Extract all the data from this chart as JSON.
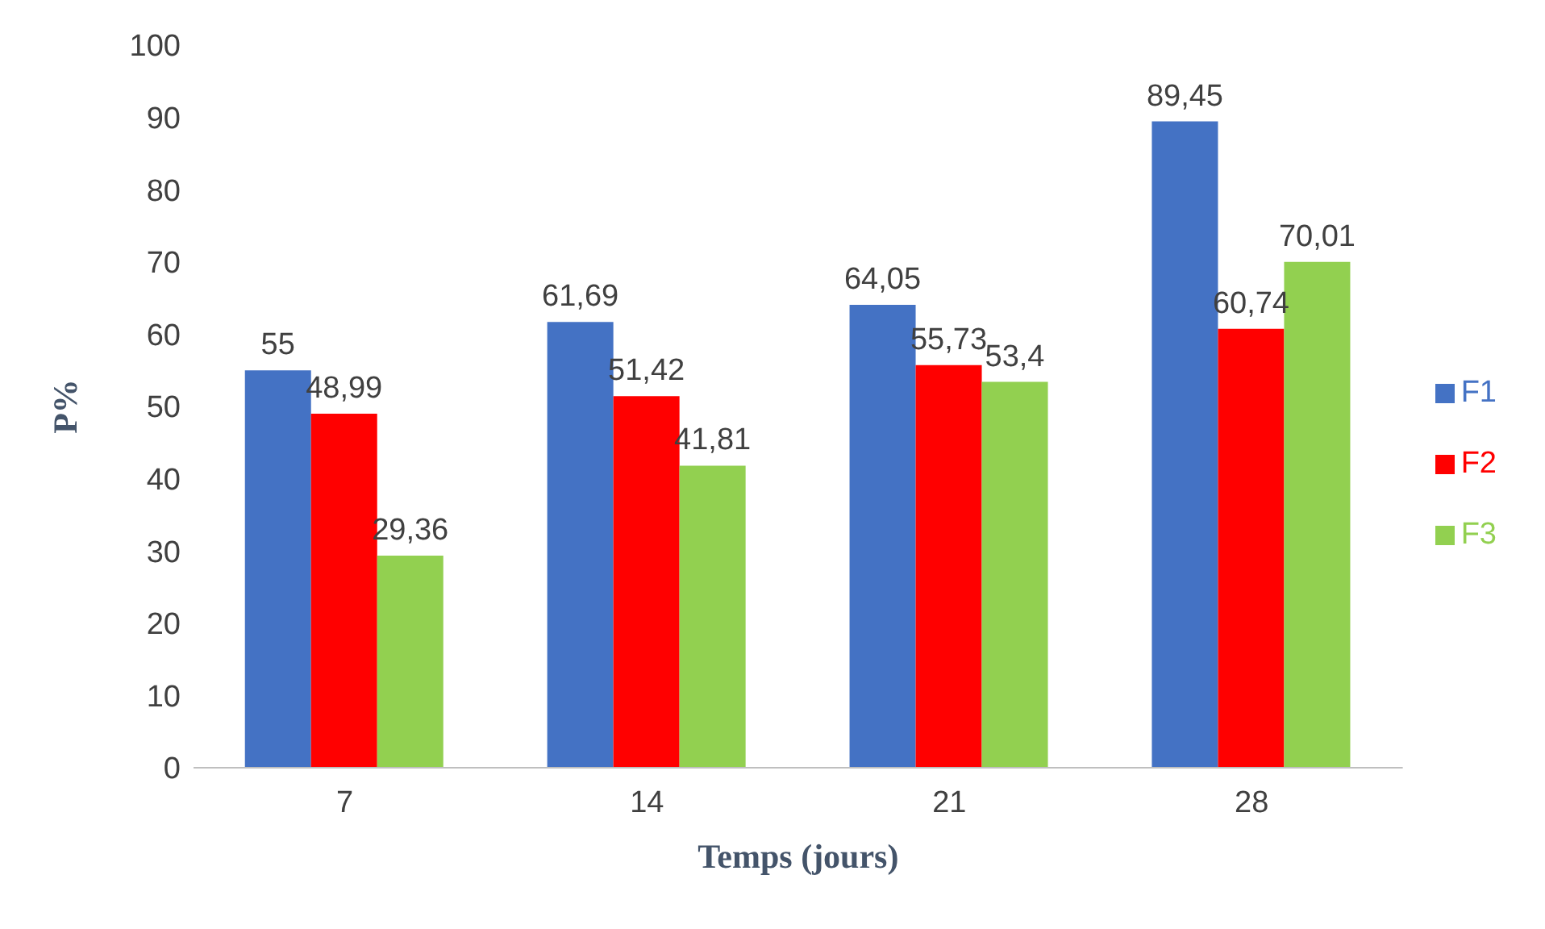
{
  "chart_data": {
    "type": "bar",
    "xlabel": "Temps (jours)",
    "ylabel": "P%",
    "categories": [
      "7",
      "14",
      "21",
      "28"
    ],
    "series": [
      {
        "name": "F1",
        "color": "#4472c4",
        "values": [
          55,
          61.69,
          64.05,
          89.45
        ],
        "value_labels": [
          "55",
          "61,69",
          "64,05",
          "89,45"
        ]
      },
      {
        "name": "F2",
        "color": "#ff0000",
        "values": [
          48.99,
          51.42,
          55.73,
          60.74
        ],
        "value_labels": [
          "48,99",
          "51,42",
          "55,73",
          "60,74"
        ]
      },
      {
        "name": "F3",
        "color": "#92d050",
        "values": [
          29.36,
          41.81,
          53.4,
          70.01
        ],
        "value_labels": [
          "29,36",
          "41,81",
          "53,4",
          "70,01"
        ]
      }
    ],
    "ylim": [
      0,
      100
    ],
    "yticks": [
      0,
      10,
      20,
      30,
      40,
      50,
      60,
      70,
      80,
      90,
      100
    ],
    "grid": false,
    "legend": "right"
  }
}
